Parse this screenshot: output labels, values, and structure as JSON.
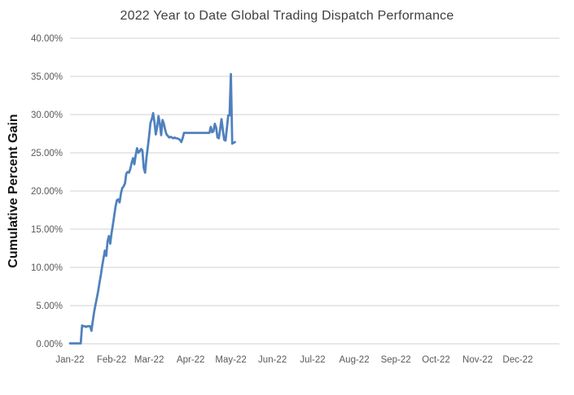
{
  "chart_data": {
    "type": "line",
    "title": "2022 Year to Date Global Trading Dispatch Performance",
    "xlabel": "",
    "ylabel": "Cumulative Percent Gain",
    "x_tick_labels": [
      "Jan-22",
      "Feb-22",
      "Mar-22",
      "Apr-22",
      "May-22",
      "Jun-22",
      "Jul-22",
      "Aug-22",
      "Sep-22",
      "Oct-22",
      "Nov-22",
      "Dec-22"
    ],
    "y_tick_labels": [
      "0.00%",
      "5.00%",
      "10.00%",
      "15.00%",
      "20.00%",
      "25.00%",
      "30.00%",
      "35.00%",
      "40.00%"
    ],
    "ylim": [
      0,
      40
    ],
    "x_range_days": 365,
    "grid": "horizontal",
    "legend": "none",
    "line_color": "#4F81BD",
    "grid_color": "#D9D9D9",
    "tick_color": "#595959",
    "title_color": "#404040",
    "series": [
      {
        "name": "Cumulative Percent Gain",
        "unit": "percent",
        "start_date": "2022-01-01",
        "frequency": "daily",
        "values": [
          0.05,
          0.05,
          0.05,
          0.05,
          0.05,
          0.05,
          0.05,
          0.05,
          0.05,
          2.4,
          2.3,
          2.3,
          2.2,
          2.3,
          2.3,
          2.3,
          1.7,
          3.0,
          4.2,
          5.1,
          6.0,
          6.9,
          8.0,
          9.0,
          10.2,
          11.2,
          12.2,
          11.5,
          13.4,
          14.1,
          13.1,
          14.5,
          15.6,
          16.8,
          18.0,
          18.8,
          18.9,
          18.5,
          19.7,
          20.4,
          20.6,
          21.0,
          22.3,
          22.5,
          22.4,
          22.9,
          23.7,
          24.3,
          23.5,
          24.7,
          25.6,
          25.0,
          25.2,
          25.5,
          25.3,
          23.0,
          22.4,
          24.3,
          25.7,
          27.2,
          28.9,
          29.4,
          30.2,
          29.0,
          27.4,
          28.4,
          29.8,
          28.8,
          27.3,
          29.3,
          28.8,
          28.0,
          27.4,
          27.2,
          27.0,
          27.1,
          27.0,
          26.9,
          27.0,
          26.9,
          26.9,
          26.8,
          26.7,
          26.4,
          26.9,
          27.6,
          27.6,
          27.6,
          27.6,
          27.6,
          27.6,
          27.6,
          27.6,
          27.6,
          27.6,
          27.6,
          27.6,
          27.6,
          27.6,
          27.6,
          27.6,
          27.6,
          27.6,
          27.6,
          27.6,
          28.4,
          27.7,
          27.8,
          28.8,
          28.3,
          27.0,
          26.9,
          28.1,
          29.4,
          28.0,
          26.7,
          26.6,
          28.2,
          29.9,
          29.9,
          35.3,
          26.2,
          26.3,
          26.4
        ]
      }
    ]
  }
}
